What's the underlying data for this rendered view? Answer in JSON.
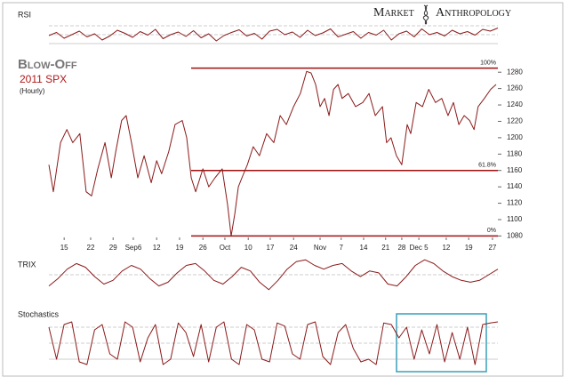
{
  "header": {
    "brand_left": "Market",
    "brand_right": "Anthropology"
  },
  "chart_data": [
    {
      "type": "line",
      "title": "RSI",
      "color": "#8b1a1a",
      "ylim": [
        20,
        80
      ],
      "levels": [
        30,
        50,
        70
      ],
      "values": [
        48,
        55,
        42,
        50,
        58,
        45,
        52,
        38,
        47,
        60,
        53,
        44,
        57,
        49,
        62,
        41,
        50,
        56,
        46,
        59,
        43,
        52,
        36,
        48,
        55,
        61,
        47,
        53,
        40,
        58,
        62,
        50,
        56,
        44,
        60,
        48,
        54,
        63,
        45,
        51,
        57,
        42,
        55,
        49,
        60,
        38,
        52,
        58,
        45,
        63,
        50,
        55,
        47,
        60,
        52,
        57,
        49,
        62,
        58,
        65
      ]
    },
    {
      "type": "line",
      "title": "Blow-Off",
      "subtitle": "2011 SPX",
      "annotation": "(Hourly)",
      "color": "#8b1a1a",
      "x": [
        0,
        1,
        2.6,
        4,
        5.3,
        6.9,
        8.3,
        9.5,
        10.9,
        12.5,
        13.9,
        14.9,
        16.2,
        17.2,
        18.4,
        19.8,
        21.2,
        22.8,
        24,
        25.1,
        26.7,
        28.1,
        29.7,
        30.7,
        31.7,
        32.7,
        34.3,
        35.6,
        37,
        38.6,
        39.8,
        40.6,
        41.4,
        42.2,
        43,
        44.2,
        45.5,
        46.9,
        48.5,
        50.1,
        51.5,
        52.9,
        54.5,
        56,
        57.4,
        58.4,
        59.4,
        60.4,
        61.4,
        62.4,
        63.4,
        64.4,
        65.3,
        66.7,
        68.3,
        69.9,
        71.3,
        72.7,
        74.3,
        75.2,
        76.2,
        77.4,
        78.6,
        79.8,
        80.6,
        81.8,
        83.2,
        84.6,
        86.1,
        87.5,
        88.9,
        90.1,
        91.3,
        92.5,
        93.7,
        94.7,
        95.6,
        97,
        98.4,
        99.6
      ],
      "values": [
        1167,
        1134,
        1194,
        1210,
        1194,
        1205,
        1134,
        1129,
        1162,
        1194,
        1151,
        1183,
        1221,
        1227,
        1194,
        1151,
        1178,
        1145,
        1172,
        1156,
        1183,
        1216,
        1221,
        1200,
        1151,
        1134,
        1162,
        1140,
        1151,
        1162,
        1118,
        1080,
        1107,
        1140,
        1151,
        1167,
        1189,
        1178,
        1205,
        1194,
        1227,
        1216,
        1238,
        1254,
        1281,
        1279,
        1265,
        1238,
        1248,
        1227,
        1259,
        1265,
        1248,
        1254,
        1238,
        1243,
        1254,
        1227,
        1238,
        1194,
        1200,
        1178,
        1167,
        1216,
        1205,
        1243,
        1238,
        1259,
        1243,
        1248,
        1227,
        1243,
        1216,
        1227,
        1221,
        1210,
        1238,
        1248,
        1259,
        1265
      ],
      "xlim": [
        0,
        100
      ],
      "ylim": [
        1075,
        1290
      ],
      "xticks": [
        {
          "value": 3.4,
          "label": "15"
        },
        {
          "value": 9.3,
          "label": "22"
        },
        {
          "value": 14.3,
          "label": "29"
        },
        {
          "value": 18.8,
          "label": "Sep6"
        },
        {
          "value": 24,
          "label": "12"
        },
        {
          "value": 29.1,
          "label": "19"
        },
        {
          "value": 34.3,
          "label": "26"
        },
        {
          "value": 39.2,
          "label": "Oct"
        },
        {
          "value": 44.4,
          "label": "10"
        },
        {
          "value": 49.3,
          "label": "17"
        },
        {
          "value": 54.5,
          "label": "24"
        },
        {
          "value": 60.4,
          "label": "Nov"
        },
        {
          "value": 65.1,
          "label": "7"
        },
        {
          "value": 70.1,
          "label": "14"
        },
        {
          "value": 75,
          "label": "21"
        },
        {
          "value": 78.6,
          "label": "28"
        },
        {
          "value": 82.4,
          "label": "Dec 5"
        },
        {
          "value": 88.5,
          "label": "12"
        },
        {
          "value": 93.5,
          "label": "19"
        },
        {
          "value": 98.8,
          "label": "27"
        }
      ],
      "yticks": [
        1080,
        1100,
        1120,
        1140,
        1160,
        1180,
        1200,
        1220,
        1240,
        1260,
        1280
      ],
      "levels": [
        {
          "value": 1285,
          "label": "100%"
        },
        {
          "value": 1160,
          "label": "61.8%"
        },
        {
          "value": 1080,
          "label": "0%"
        }
      ]
    },
    {
      "type": "line",
      "title": "TRIX",
      "color": "#8b1a1a",
      "ylim": [
        -1,
        1
      ],
      "levels": [
        0
      ],
      "values": [
        -0.6,
        -0.2,
        0.3,
        0.6,
        0.4,
        -0.1,
        -0.5,
        -0.3,
        0.2,
        0.5,
        0.3,
        -0.2,
        -0.6,
        -0.4,
        0.1,
        0.5,
        0.6,
        0.2,
        -0.3,
        -0.5,
        -0.1,
        0.4,
        0.2,
        -0.4,
        -0.8,
        -0.3,
        0.3,
        0.7,
        0.8,
        0.5,
        0.3,
        0.5,
        0.6,
        0.2,
        -0.1,
        0.2,
        0.1,
        -0.5,
        -0.6,
        -0.1,
        0.5,
        0.8,
        0.6,
        0.2,
        -0.1,
        -0.3,
        -0.4,
        -0.3,
        0,
        0.3
      ]
    },
    {
      "type": "line",
      "title": "Stochastics",
      "color": "#8b1a1a",
      "ylim": [
        0,
        100
      ],
      "levels": [
        20,
        50,
        80
      ],
      "values": [
        80,
        20,
        85,
        90,
        15,
        10,
        75,
        85,
        30,
        20,
        90,
        80,
        15,
        60,
        85,
        10,
        20,
        88,
        70,
        25,
        85,
        15,
        80,
        90,
        20,
        10,
        85,
        75,
        20,
        15,
        88,
        82,
        30,
        20,
        85,
        90,
        25,
        10,
        70,
        85,
        40,
        15,
        20,
        10,
        88,
        85,
        60,
        80,
        20,
        75,
        30,
        85,
        15,
        70,
        20,
        80,
        10,
        85,
        88,
        90
      ]
    }
  ]
}
